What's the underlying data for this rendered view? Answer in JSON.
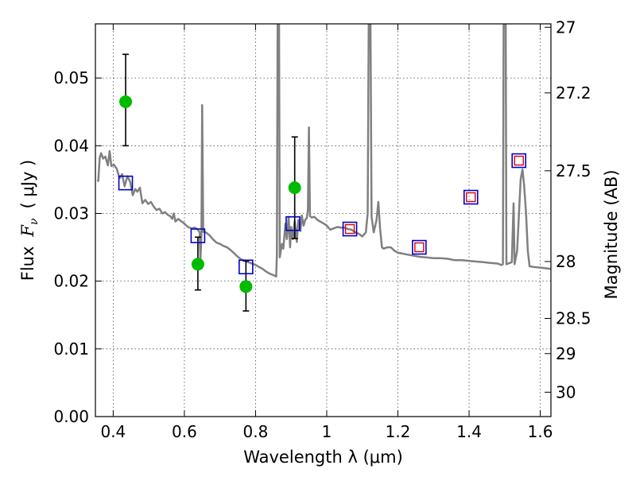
{
  "chart_data": {
    "type": "scatter",
    "title": "",
    "xlabel": "Wavelength  λ (μm)",
    "ylabel": "Flux  F_ν  ( μJy )",
    "ylabel_parts": {
      "prefix": "Flux",
      "symbol": "F",
      "subscript": "ν",
      "unit": "( μJy )"
    },
    "y2label": "Magnitude (AB)",
    "xlim": [
      0.35,
      1.63
    ],
    "ylim": [
      0.0,
      0.058
    ],
    "grid": true,
    "x_ticks": [
      0.4,
      0.6,
      0.8,
      1.0,
      1.2,
      1.4,
      1.6
    ],
    "x_tick_labels": [
      "0.4",
      "0.6",
      "0.8",
      "1",
      "1.2",
      "1.4",
      "1.6"
    ],
    "y_ticks": [
      0.0,
      0.01,
      0.02,
      0.03,
      0.04,
      0.05
    ],
    "y_tick_labels": [
      "0.00",
      "0.01",
      "0.02",
      "0.03",
      "0.04",
      "0.05"
    ],
    "mag_ticks": [
      {
        "label": "27",
        "flux": 0.0575
      },
      {
        "label": "27.2",
        "flux": 0.0478
      },
      {
        "label": "27.5",
        "flux": 0.0363
      },
      {
        "label": "28",
        "flux": 0.0229
      },
      {
        "label": "28.5",
        "flux": 0.0145
      },
      {
        "label": "29",
        "flux": 0.0093
      },
      {
        "label": "30",
        "flux": 0.0036
      }
    ],
    "series": [
      {
        "type": "line",
        "color": "#808080",
        "points": [
          [
            0.355,
            0.0349
          ],
          [
            0.358,
            0.0348
          ],
          [
            0.362,
            0.0382
          ],
          [
            0.366,
            0.0389
          ],
          [
            0.372,
            0.0381
          ],
          [
            0.378,
            0.0384
          ],
          [
            0.385,
            0.0371
          ],
          [
            0.39,
            0.0392
          ],
          [
            0.395,
            0.037
          ],
          [
            0.402,
            0.0372
          ],
          [
            0.41,
            0.0366
          ],
          [
            0.418,
            0.0352
          ],
          [
            0.425,
            0.0358
          ],
          [
            0.432,
            0.034
          ],
          [
            0.44,
            0.0355
          ],
          [
            0.448,
            0.0346
          ],
          [
            0.455,
            0.0327
          ],
          [
            0.462,
            0.0336
          ],
          [
            0.468,
            0.0332
          ],
          [
            0.475,
            0.0338
          ],
          [
            0.482,
            0.0315
          ],
          [
            0.49,
            0.032
          ],
          [
            0.498,
            0.0314
          ],
          [
            0.506,
            0.0317
          ],
          [
            0.514,
            0.031
          ],
          [
            0.522,
            0.0305
          ],
          [
            0.53,
            0.0307
          ],
          [
            0.538,
            0.03
          ],
          [
            0.546,
            0.0302
          ],
          [
            0.553,
            0.0298
          ],
          [
            0.56,
            0.0296
          ],
          [
            0.566,
            0.0292
          ],
          [
            0.57,
            0.03
          ],
          [
            0.575,
            0.0288
          ],
          [
            0.583,
            0.0292
          ],
          [
            0.59,
            0.0289
          ],
          [
            0.6,
            0.0285
          ],
          [
            0.61,
            0.028
          ],
          [
            0.62,
            0.0278
          ],
          [
            0.63,
            0.0279
          ],
          [
            0.638,
            0.0276
          ],
          [
            0.643,
            0.0272
          ],
          [
            0.645,
            0.023
          ],
          [
            0.648,
            0.027
          ],
          [
            0.65,
            0.046
          ],
          [
            0.653,
            0.0273
          ],
          [
            0.66,
            0.0272
          ],
          [
            0.67,
            0.0268
          ],
          [
            0.68,
            0.0262
          ],
          [
            0.69,
            0.0257
          ],
          [
            0.7,
            0.0255
          ],
          [
            0.71,
            0.0252
          ],
          [
            0.72,
            0.025
          ],
          [
            0.73,
            0.0246
          ],
          [
            0.74,
            0.0241
          ],
          [
            0.75,
            0.0236
          ],
          [
            0.76,
            0.0232
          ],
          [
            0.77,
            0.023
          ],
          [
            0.78,
            0.0228
          ],
          [
            0.79,
            0.0226
          ],
          [
            0.8,
            0.0224
          ],
          [
            0.81,
            0.0221
          ],
          [
            0.82,
            0.0218
          ],
          [
            0.83,
            0.0214
          ],
          [
            0.84,
            0.0211
          ],
          [
            0.85,
            0.0209
          ],
          [
            0.858,
            0.0207
          ],
          [
            0.86,
            0.024
          ],
          [
            0.862,
            0.058
          ],
          [
            0.866,
            0.058
          ],
          [
            0.868,
            0.0235
          ],
          [
            0.874,
            0.0255
          ],
          [
            0.878,
            0.0248
          ],
          [
            0.884,
            0.0285
          ],
          [
            0.888,
            0.0262
          ],
          [
            0.893,
            0.0295
          ],
          [
            0.897,
            0.025
          ],
          [
            0.9,
            0.028
          ],
          [
            0.905,
            0.0262
          ],
          [
            0.91,
            0.0289
          ],
          [
            0.916,
            0.0258
          ],
          [
            0.92,
            0.029
          ],
          [
            0.926,
            0.0274
          ],
          [
            0.93,
            0.0297
          ],
          [
            0.935,
            0.0282
          ],
          [
            0.94,
            0.0291
          ],
          [
            0.944,
            0.0293
          ],
          [
            0.947,
            0.0305
          ],
          [
            0.95,
            0.0427
          ],
          [
            0.953,
            0.0296
          ],
          [
            0.958,
            0.0294
          ],
          [
            0.965,
            0.0295
          ],
          [
            0.975,
            0.029
          ],
          [
            0.985,
            0.0287
          ],
          [
            0.995,
            0.0284
          ],
          [
            1.0,
            0.0282
          ],
          [
            1.01,
            0.0276
          ],
          [
            1.02,
            0.0278
          ],
          [
            1.03,
            0.028
          ],
          [
            1.04,
            0.0279
          ],
          [
            1.05,
            0.0279
          ],
          [
            1.06,
            0.0277
          ],
          [
            1.07,
            0.0276
          ],
          [
            1.08,
            0.0272
          ],
          [
            1.09,
            0.027
          ],
          [
            1.1,
            0.0266
          ],
          [
            1.11,
            0.0272
          ],
          [
            1.115,
            0.03
          ],
          [
            1.118,
            0.058
          ],
          [
            1.123,
            0.058
          ],
          [
            1.126,
            0.0295
          ],
          [
            1.132,
            0.0272
          ],
          [
            1.14,
            0.029
          ],
          [
            1.145,
            0.0317
          ],
          [
            1.15,
            0.0278
          ],
          [
            1.155,
            0.025
          ],
          [
            1.16,
            0.0248
          ],
          [
            1.17,
            0.025
          ],
          [
            1.18,
            0.025
          ],
          [
            1.19,
            0.0245
          ],
          [
            1.2,
            0.0242
          ],
          [
            1.22,
            0.024
          ],
          [
            1.24,
            0.0238
          ],
          [
            1.26,
            0.0236
          ],
          [
            1.28,
            0.0235
          ],
          [
            1.3,
            0.0234
          ],
          [
            1.32,
            0.0234
          ],
          [
            1.34,
            0.0233
          ],
          [
            1.36,
            0.0231
          ],
          [
            1.38,
            0.0231
          ],
          [
            1.4,
            0.023
          ],
          [
            1.42,
            0.0229
          ],
          [
            1.44,
            0.0228
          ],
          [
            1.46,
            0.0227
          ],
          [
            1.48,
            0.0226
          ],
          [
            1.49,
            0.0224
          ],
          [
            1.495,
            0.0225
          ],
          [
            1.497,
            0.058
          ],
          [
            1.503,
            0.058
          ],
          [
            1.505,
            0.0225
          ],
          [
            1.51,
            0.0226
          ],
          [
            1.52,
            0.0228
          ],
          [
            1.525,
            0.0315
          ],
          [
            1.528,
            0.0225
          ],
          [
            1.535,
            0.0245
          ],
          [
            1.545,
            0.035
          ],
          [
            1.55,
            0.0365
          ],
          [
            1.555,
            0.034
          ],
          [
            1.56,
            0.03
          ],
          [
            1.565,
            0.0245
          ],
          [
            1.57,
            0.0222
          ],
          [
            1.58,
            0.0221
          ],
          [
            1.6,
            0.022
          ],
          [
            1.63,
            0.0218
          ]
        ]
      },
      {
        "type": "scatter-errorbar",
        "color": "#00bb00",
        "errorbar_color": "#000000",
        "points": [
          {
            "x": 0.435,
            "y": 0.0465,
            "yerr_low": 0.04,
            "yerr_high": 0.0535
          },
          {
            "x": 0.638,
            "y": 0.0225,
            "yerr_low": 0.0187,
            "yerr_high": 0.0265
          },
          {
            "x": 0.773,
            "y": 0.0192,
            "yerr_low": 0.0156,
            "yerr_high": 0.023
          },
          {
            "x": 0.91,
            "y": 0.0338,
            "yerr_low": 0.0263,
            "yerr_high": 0.0413
          }
        ]
      },
      {
        "type": "square-markers",
        "color": "#0000cc",
        "points": [
          [
            0.435,
            0.0345
          ],
          [
            0.638,
            0.0267
          ],
          [
            0.773,
            0.0221
          ],
          [
            0.905,
            0.0285
          ],
          [
            1.065,
            0.0277
          ],
          [
            1.26,
            0.025
          ],
          [
            1.405,
            0.0324
          ],
          [
            1.54,
            0.0378
          ]
        ]
      },
      {
        "type": "square-markers-inner",
        "color": "#dd0000",
        "points": [
          [
            1.065,
            0.0277
          ],
          [
            1.26,
            0.025
          ],
          [
            1.405,
            0.0324
          ],
          [
            1.54,
            0.0378
          ]
        ]
      }
    ]
  }
}
